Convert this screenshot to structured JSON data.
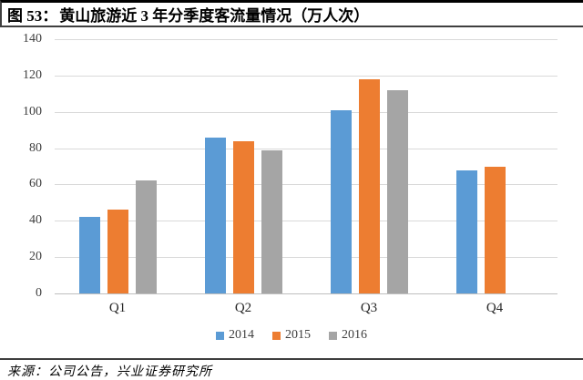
{
  "header": {
    "figure_label": "图 53：",
    "title": "黄山旅游近 3 年分季度客流量情况（万人次）"
  },
  "chart_data": {
    "type": "bar",
    "title": "黄山旅游近 3 年分季度客流量情况（万人次）",
    "categories": [
      "Q1",
      "Q2",
      "Q3",
      "Q4"
    ],
    "series": [
      {
        "name": "2014",
        "color": "#5B9BD5",
        "values": [
          42,
          86,
          101,
          68
        ]
      },
      {
        "name": "2015",
        "color": "#ED7D31",
        "values": [
          46,
          84,
          118,
          70
        ]
      },
      {
        "name": "2016",
        "color": "#A5A5A5",
        "values": [
          62,
          79,
          112,
          null
        ]
      }
    ],
    "xlabel": "",
    "ylabel": "",
    "ylim": [
      0,
      140
    ],
    "yticks": [
      0,
      20,
      40,
      60,
      80,
      100,
      120,
      140
    ],
    "grid": true,
    "gridline_color": "#D9D9D9",
    "legend_position": "bottom"
  },
  "footer": {
    "source_label": "来源：公司公告，兴业证券研究所"
  }
}
